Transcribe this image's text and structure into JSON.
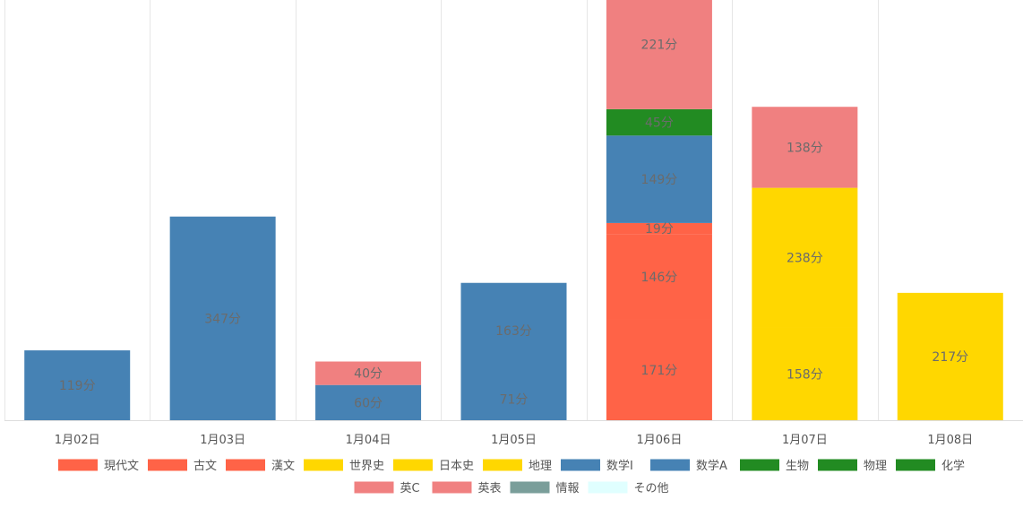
{
  "chart_data": {
    "type": "bar",
    "stacked": true,
    "unit_suffix": "分",
    "categories": [
      "1月02日",
      "1月03日",
      "1月04日",
      "1月05日",
      "1月06日",
      "1月07日",
      "1月08日"
    ],
    "ylim": [
      0,
      800
    ],
    "grid": "vertical",
    "legend_position": "bottom",
    "series": [
      {
        "name": "現代文",
        "color": "#FF6347",
        "values": [
          0,
          0,
          0,
          0,
          171,
          0,
          0
        ]
      },
      {
        "name": "古文",
        "color": "#FF6347",
        "values": [
          0,
          0,
          0,
          0,
          146,
          0,
          0
        ]
      },
      {
        "name": "漢文",
        "color": "#FF6347",
        "values": [
          0,
          0,
          0,
          0,
          19,
          0,
          0
        ]
      },
      {
        "name": "世界史",
        "color": "#FFD700",
        "values": [
          0,
          0,
          0,
          0,
          0,
          158,
          0
        ]
      },
      {
        "name": "日本史",
        "color": "#FFD700",
        "values": [
          0,
          0,
          0,
          0,
          0,
          238,
          217
        ]
      },
      {
        "name": "地理",
        "color": "#FFD700",
        "values": [
          0,
          0,
          0,
          0,
          0,
          0,
          0
        ]
      },
      {
        "name": "数学Ⅰ",
        "color": "#4682B4",
        "values": [
          119,
          347,
          60,
          71,
          149,
          0,
          0
        ]
      },
      {
        "name": "数学A",
        "color": "#4682B4",
        "values": [
          0,
          0,
          0,
          163,
          0,
          0,
          0
        ]
      },
      {
        "name": "生物",
        "color": "#228B22",
        "values": [
          0,
          0,
          0,
          0,
          45,
          0,
          0
        ]
      },
      {
        "name": "物理",
        "color": "#228B22",
        "values": [
          0,
          0,
          0,
          0,
          0,
          0,
          0
        ]
      },
      {
        "name": "化学",
        "color": "#228B22",
        "values": [
          0,
          0,
          0,
          0,
          0,
          0,
          0
        ]
      },
      {
        "name": "英C",
        "color": "#F08080",
        "values": [
          0,
          0,
          40,
          0,
          221,
          138,
          0
        ]
      },
      {
        "name": "英表",
        "color": "#F08080",
        "values": [
          0,
          0,
          0,
          0,
          0,
          0,
          0
        ]
      },
      {
        "name": "情報",
        "color": "#7A9E9A",
        "values": [
          0,
          0,
          0,
          0,
          0,
          0,
          0
        ]
      },
      {
        "name": "その他",
        "color": "#E0FFFF",
        "values": [
          0,
          0,
          0,
          0,
          0,
          0,
          0
        ]
      }
    ]
  }
}
